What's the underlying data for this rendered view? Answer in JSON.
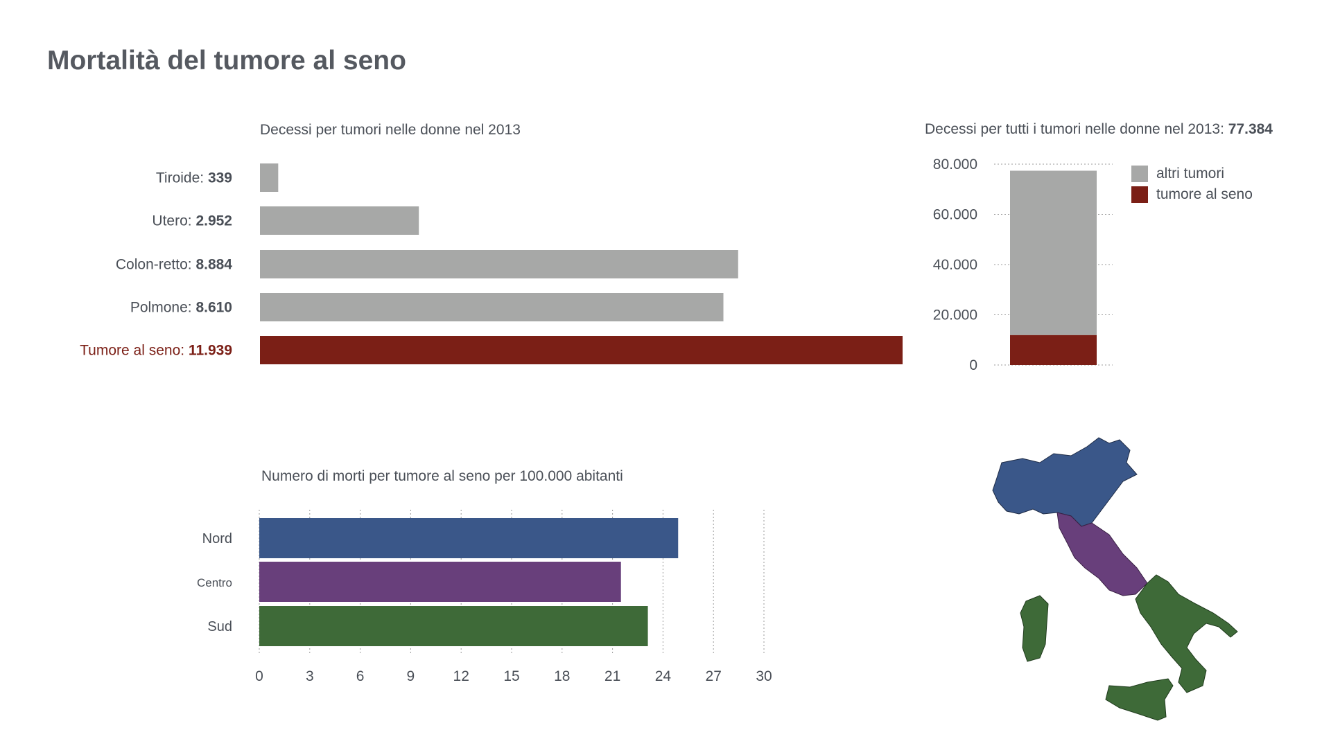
{
  "title": "Mortalità del tumore al seno",
  "chart_data": [
    {
      "type": "bar",
      "orientation": "horizontal",
      "title": "Decessi per tumori nelle donne nel 2013",
      "categories": [
        {
          "label": "Tiroide: ",
          "value_label": "339",
          "value": 339,
          "color": "#a7a8a7"
        },
        {
          "label": "Utero: ",
          "value_label": "2.952",
          "value": 2952,
          "color": "#a7a8a7"
        },
        {
          "label": "Colon-retto: ",
          "value_label": "8.884",
          "value": 8884,
          "color": "#a7a8a7"
        },
        {
          "label": "Polmone: ",
          "value_label": "8.610",
          "value": 8610,
          "color": "#a7a8a7"
        },
        {
          "label": "Tumore al seno: ",
          "value_label": "11.939",
          "value": 11939,
          "color": "#7b1f16",
          "highlight": true
        }
      ],
      "colors": {
        "default": "#a7a8a7",
        "highlight": "#7b1f16",
        "highlight_text": "#7b1f16"
      }
    },
    {
      "type": "bar",
      "stacked": true,
      "title_prefix": "Decessi per tutti i tumori nelle donne nel 2013: ",
      "title_value": "77.384",
      "total": 77384,
      "series": [
        {
          "name": "tumore al seno",
          "value": 11939,
          "color": "#7b1f16"
        },
        {
          "name": "altri tumori",
          "value": 65445,
          "color": "#a7a8a7"
        }
      ],
      "legend": [
        {
          "name": "altri tumori",
          "color": "#a7a8a7"
        },
        {
          "name": "tumore al seno",
          "color": "#7b1f16"
        }
      ],
      "legend_position": "right",
      "ylim": [
        0,
        80000
      ],
      "yticks": [
        {
          "value": 0,
          "label": "0"
        },
        {
          "value": 20000,
          "label": "20.000"
        },
        {
          "value": 40000,
          "label": "40.000"
        },
        {
          "value": 60000,
          "label": "60.000"
        },
        {
          "value": 80000,
          "label": "80.000"
        }
      ],
      "grid": true
    },
    {
      "type": "bar",
      "orientation": "horizontal",
      "title": "Numero di morti per tumore al seno per 100.000 abitanti",
      "categories": [
        {
          "label": "Nord",
          "value": 24.9,
          "color": "#3a5789"
        },
        {
          "label": "Centro",
          "value": 21.5,
          "color": "#683f7b"
        },
        {
          "label": "Sud",
          "value": 23.1,
          "color": "#3e6a38"
        }
      ],
      "xlim": [
        0,
        30
      ],
      "xticks": [
        0,
        3,
        6,
        9,
        12,
        15,
        18,
        21,
        24,
        27,
        30
      ],
      "grid": true
    }
  ],
  "map": {
    "type": "choropleth",
    "regions": [
      {
        "name": "Nord",
        "color": "#3a5789"
      },
      {
        "name": "Centro",
        "color": "#683f7b"
      },
      {
        "name": "Sud",
        "color": "#3e6a38"
      }
    ]
  }
}
